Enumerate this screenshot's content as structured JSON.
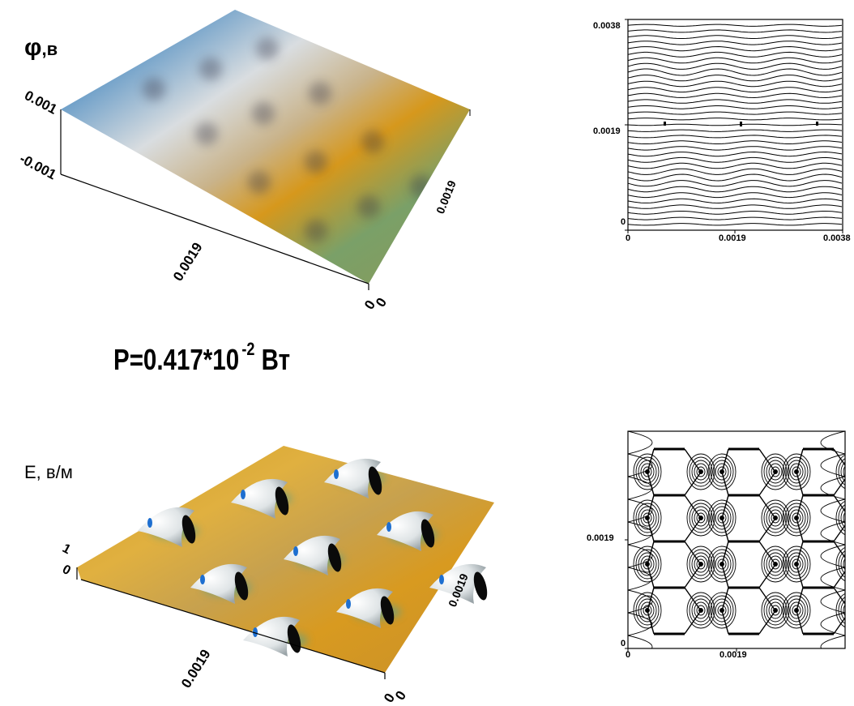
{
  "top_surface": {
    "zlabel_symbol": "φ",
    "zlabel_unit": ",в",
    "z_top_tick": "0.001",
    "z_bottom_tick": "-0.001",
    "x_mid_tick": "0.0019",
    "y_mid_tick": "0.0019",
    "origin_tick_a": "0",
    "origin_tick_b": "0"
  },
  "top_contour": {
    "y_ticks": [
      "0.0038",
      "0.0019",
      "0"
    ],
    "x_ticks": [
      "0",
      "0.0019",
      "0.0038"
    ]
  },
  "power": {
    "prefix": "P=0.417*10",
    "exponent": "-2",
    "unit": "Вт"
  },
  "bottom_surface": {
    "zlabel": "E, в/м",
    "z_top_tick": "1",
    "z_bottom_tick": "0",
    "x_mid_tick": "0.0019",
    "y_mid_tick": "0.0019",
    "origin_tick_a": "0",
    "origin_tick_b": "0"
  },
  "bottom_contour": {
    "y_ticks": [
      "0.0019",
      "0"
    ],
    "x_ticks": [
      "0",
      "0.0019"
    ]
  },
  "colors": {
    "blue": "#1e4fc8",
    "silver": "#d6dcdf",
    "orange": "#d59a1c",
    "green": "#6f9a5e",
    "black": "#000000"
  }
}
